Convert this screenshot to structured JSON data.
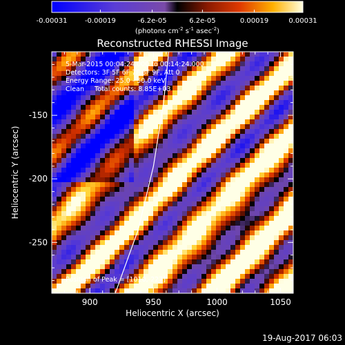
{
  "chart_data": {
    "type": "heatmap",
    "title": "Reconstructed RHESSI Image",
    "xlabel": "Heliocentric X (arcsec)",
    "ylabel": "Heliocentric Y (arcsec)",
    "xlim": [
      870,
      1060
    ],
    "ylim": [
      -290,
      -100
    ],
    "xticks": [
      "900",
      "950",
      "1000",
      "1050"
    ],
    "xtick_values": [
      900,
      950,
      1000,
      1050
    ],
    "yticks": [
      "-150",
      "-200",
      "-250"
    ],
    "ytick_values": [
      -150,
      -200,
      -250
    ],
    "colorbar": {
      "unit_prefix": "(photons cm",
      "unit_exp1": "-2",
      "unit_mid": " s",
      "unit_exp2": "-1",
      "unit_mid2": " asec",
      "unit_exp3": "-2",
      "unit_suffix": ")",
      "ticks": [
        "-0.00031",
        "-0.00019",
        "-6.2e-05",
        "6.2e-05",
        "0.00019",
        "0.00031"
      ],
      "tick_values": [
        -0.00031,
        -0.00019,
        -6.2e-05,
        6.2e-05,
        0.00019,
        0.00031
      ],
      "range": [
        -0.00031,
        0.00031
      ]
    },
    "annotations": [
      "5-Mar-2015 00:04:24.000 to 00:14:24.000",
      "Detectors: 3F 5F 6F 7F 8F 9F, Att 0",
      "Energy Range: 25.0 - 50.0 keV",
      "Clean     Total counts: 8.85E+03"
    ],
    "peak_label": "Position of Peak = [1010,-227]",
    "peak": [
      1010,
      -227
    ],
    "limb_curve": [
      [
        920,
        -290
      ],
      [
        938,
        -240
      ],
      [
        950,
        -190
      ],
      [
        958,
        -140
      ],
      [
        962,
        -100
      ]
    ],
    "timestamp": "19-Aug-2017 06:03"
  }
}
